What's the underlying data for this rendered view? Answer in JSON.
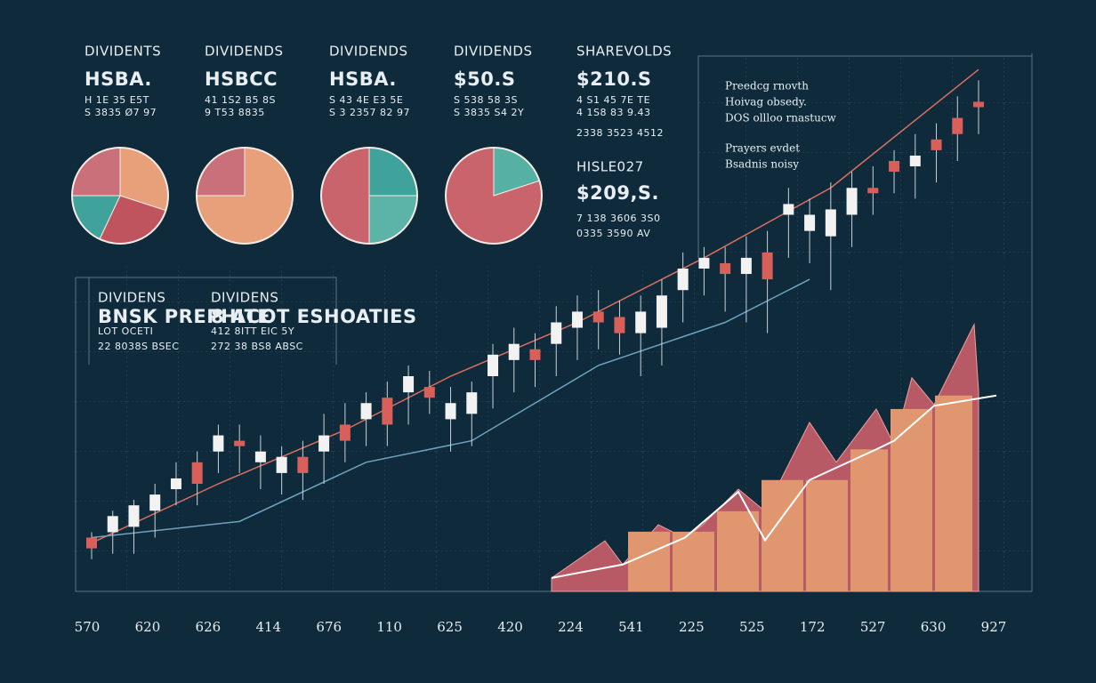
{
  "header_blocks": [
    {
      "lines": [
        "DIVIDENTS",
        "HSBA.",
        "H 1E 35 E5T",
        "S 3835 Ø7 97"
      ]
    },
    {
      "lines": [
        "DIVIDENDS",
        "HSBCC",
        "41 1S2 B5 8S",
        "9 T53 8835"
      ]
    },
    {
      "lines": [
        "DIVIDENDS",
        "HSBA.",
        "S 43 4E E3 5E",
        "S 3 2357 82 97"
      ]
    },
    {
      "lines": [
        "DIVIDENDS",
        "$50.S",
        "S 538 58 3S",
        "S 3835 S4 2Y"
      ]
    },
    {
      "lines": [
        "SHAREVOLDS",
        "$210.S",
        "4 S1 45 7E TE",
        "4 1S8 83 9.43",
        "2338 3523 4512"
      ]
    }
  ],
  "quote_block": {
    "lines": [
      "HISLE027",
      "$209,S.",
      "7 138 3606 3S0",
      "0335 3590 AV"
    ]
  },
  "info_panel": {
    "lines": [
      "Preedcg rnovth",
      "Hoivag obsedy.",
      "DOS ollloo rnastucw",
      "Prayers evdet",
      "Bsadnis noisy"
    ]
  },
  "left_panel": {
    "columns": [
      {
        "lines": [
          "DIVIDENS",
          "BNSK PREPHITE",
          "LOT OCETI",
          "22 8038S BSEC"
        ]
      },
      {
        "lines": [
          "DIVIDENS",
          "8 ACOT ESHOATIES",
          "412 8ITT EIC 5Y",
          "272 38 BS8 ABSC"
        ]
      }
    ]
  },
  "chart_data": [
    {
      "type": "pie",
      "values": [
        30,
        27,
        18,
        25
      ],
      "colors": [
        "#e8a07a",
        "#c0545e",
        "#3fa39b",
        "#c9707a"
      ]
    },
    {
      "type": "pie",
      "values": [
        75,
        25
      ],
      "colors": [
        "#e8a07a",
        "#c9707a"
      ]
    },
    {
      "type": "pie",
      "values": [
        25,
        25,
        50
      ],
      "colors": [
        "#3fa39b",
        "#5cb3a8",
        "#c9636c"
      ]
    },
    {
      "type": "pie",
      "values": [
        20,
        80
      ],
      "colors": [
        "#56b0a4",
        "#c9636c"
      ]
    },
    {
      "type": "candlestick",
      "open": [
        10,
        11,
        12,
        15,
        19,
        24,
        26,
        28,
        24,
        22,
        25,
        26,
        31,
        32,
        36,
        37,
        38,
        32,
        33,
        40,
        43,
        45,
        46,
        49,
        52,
        51,
        48,
        49,
        56,
        60,
        61,
        59,
        63,
        70,
        67,
        66,
        70,
        75,
        80,
        79,
        84,
        88,
        91
      ],
      "close": [
        8,
        14,
        16,
        18,
        21,
        20,
        29,
        27,
        26,
        25,
        22,
        29,
        28,
        35,
        31,
        40,
        36,
        35,
        37,
        44,
        46,
        43,
        50,
        52,
        50,
        48,
        52,
        55,
        60,
        62,
        59,
        62,
        58,
        72,
        70,
        71,
        75,
        74,
        78,
        81,
        82,
        85,
        90
      ],
      "high": [
        11,
        15,
        17,
        20,
        24,
        26,
        31,
        31,
        29,
        27,
        28,
        33,
        35,
        37,
        39,
        42,
        41,
        38,
        39,
        46,
        49,
        48,
        53,
        55,
        56,
        54,
        55,
        58,
        63,
        64,
        64,
        66,
        67,
        75,
        73,
        76,
        78,
        79,
        82,
        85,
        87,
        92,
        95
      ],
      "low": [
        6,
        7,
        7,
        10,
        16,
        16,
        22,
        22,
        19,
        18,
        17,
        20,
        24,
        27,
        27,
        31,
        33,
        26,
        27,
        34,
        37,
        38,
        40,
        43,
        45,
        44,
        40,
        42,
        50,
        55,
        52,
        50,
        48,
        62,
        61,
        56,
        64,
        70,
        74,
        73,
        76,
        80,
        85
      ],
      "up_color": "#f2f2f2",
      "down_color": "#d9605a",
      "lines": [
        {
          "color": "#d9705f",
          "x": [
            0,
            6,
            12,
            17,
            23,
            29,
            35,
            42
          ],
          "values": [
            9,
            20,
            30,
            40,
            50,
            62,
            75,
            97
          ]
        },
        {
          "color": "#6fa3c0",
          "x": [
            0,
            7,
            13,
            18,
            24,
            30,
            34
          ],
          "values": [
            10,
            13,
            24,
            28,
            42,
            50,
            58
          ]
        }
      ],
      "ylim": [
        0,
        100
      ],
      "xtick_labels": [
        "570",
        "620",
        "626",
        "414",
        "676",
        "110",
        "625",
        "420",
        "224",
        "541",
        "225",
        "525",
        "172",
        "527",
        "630",
        "927"
      ]
    },
    {
      "type": "area",
      "xlim": [
        0,
        100
      ],
      "ylim": [
        0,
        100
      ],
      "area": {
        "color": "#b85a66",
        "x": [
          0,
          12,
          16,
          24,
          30,
          34,
          42,
          48,
          58,
          64,
          73,
          77,
          81,
          86,
          95,
          96
        ],
        "values": [
          2.5,
          9.4,
          5,
          12.4,
          9.9,
          12.4,
          19,
          14.9,
          31.4,
          24,
          33.9,
          27.3,
          39.7,
          34.7,
          49.6,
          37.2
        ]
      },
      "bars": {
        "color": "#e0976f",
        "bins": [
          17,
          27,
          37,
          47,
          57,
          67,
          76,
          86,
          95
        ],
        "values": [
          11.1,
          11.1,
          14.9,
          20.7,
          20.7,
          26.4,
          33.9,
          36.4
        ]
      },
      "line": {
        "color": "#ffffff",
        "x": [
          0,
          16,
          30,
          42,
          48,
          58,
          73,
          77,
          86,
          100
        ],
        "values": [
          2.5,
          5,
          10,
          18.5,
          9.5,
          20.7,
          26.4,
          28,
          34.5,
          36.4
        ]
      }
    }
  ]
}
